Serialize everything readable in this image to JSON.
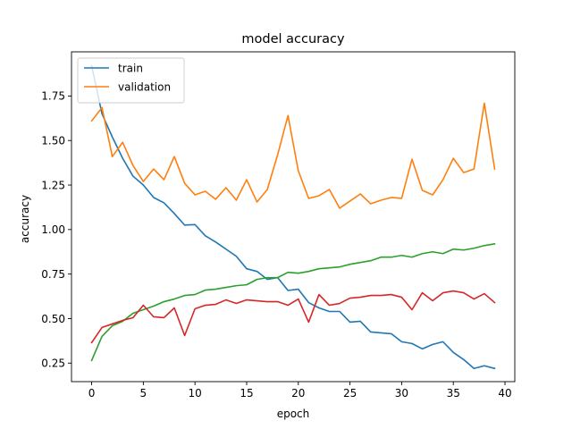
{
  "chart_data": {
    "type": "line",
    "title": "model accuracy",
    "xlabel": "epoch",
    "ylabel": "accuracy",
    "xlim": [
      -1.95,
      40.95
    ],
    "ylim": [
      0.146,
      1.998
    ],
    "xticks": [
      0,
      5,
      10,
      15,
      20,
      25,
      30,
      35,
      40
    ],
    "xtick_labels": [
      "0",
      "5",
      "10",
      "15",
      "20",
      "25",
      "30",
      "35",
      "40"
    ],
    "yticks": [
      0.25,
      0.5,
      0.75,
      1.0,
      1.25,
      1.5,
      1.75
    ],
    "ytick_labels": [
      "0.25",
      "0.50",
      "0.75",
      "1.00",
      "1.25",
      "1.50",
      "1.75"
    ],
    "grid": false,
    "legend_position": "top-left",
    "x": [
      0,
      1,
      2,
      3,
      4,
      5,
      6,
      7,
      8,
      9,
      10,
      11,
      12,
      13,
      14,
      15,
      16,
      17,
      18,
      19,
      20,
      21,
      22,
      23,
      24,
      25,
      26,
      27,
      28,
      29,
      30,
      31,
      32,
      33,
      34,
      35,
      36,
      37,
      38,
      39
    ],
    "series": [
      {
        "name": "train",
        "legend": true,
        "color": "#1f77b4",
        "values": [
          1.92,
          1.65,
          1.52,
          1.4,
          1.3,
          1.25,
          1.18,
          1.15,
          1.09,
          1.025,
          1.028,
          0.965,
          0.93,
          0.89,
          0.85,
          0.78,
          0.765,
          0.72,
          0.73,
          0.658,
          0.665,
          0.59,
          0.56,
          0.54,
          0.54,
          0.48,
          0.485,
          0.425,
          0.42,
          0.415,
          0.37,
          0.36,
          0.33,
          0.355,
          0.37,
          0.31,
          0.27,
          0.22,
          0.235,
          0.22
        ]
      },
      {
        "name": "validation",
        "legend": true,
        "color": "#ff7f0e",
        "values": [
          1.61,
          1.685,
          1.41,
          1.49,
          1.36,
          1.27,
          1.34,
          1.28,
          1.41,
          1.26,
          1.195,
          1.215,
          1.17,
          1.235,
          1.165,
          1.28,
          1.155,
          1.225,
          1.42,
          1.64,
          1.33,
          1.175,
          1.19,
          1.225,
          1.12,
          1.16,
          1.2,
          1.145,
          1.165,
          1.18,
          1.175,
          1.395,
          1.22,
          1.195,
          1.28,
          1.4,
          1.32,
          1.34,
          1.71,
          1.34
        ]
      },
      {
        "legend": false,
        "color": "#2ca02c",
        "values": [
          0.265,
          0.4,
          0.46,
          0.485,
          0.53,
          0.55,
          0.57,
          0.595,
          0.61,
          0.63,
          0.635,
          0.66,
          0.665,
          0.675,
          0.685,
          0.69,
          0.72,
          0.73,
          0.73,
          0.76,
          0.755,
          0.765,
          0.78,
          0.785,
          0.79,
          0.805,
          0.815,
          0.825,
          0.845,
          0.845,
          0.855,
          0.845,
          0.865,
          0.875,
          0.865,
          0.89,
          0.885,
          0.895,
          0.91,
          0.92
        ]
      },
      {
        "legend": false,
        "color": "#d62728",
        "values": [
          0.365,
          0.45,
          0.47,
          0.49,
          0.505,
          0.575,
          0.51,
          0.505,
          0.56,
          0.405,
          0.555,
          0.575,
          0.58,
          0.605,
          0.585,
          0.605,
          0.6,
          0.595,
          0.595,
          0.575,
          0.61,
          0.48,
          0.635,
          0.575,
          0.585,
          0.615,
          0.62,
          0.63,
          0.63,
          0.635,
          0.62,
          0.55,
          0.645,
          0.6,
          0.645,
          0.655,
          0.645,
          0.61,
          0.64,
          0.59
        ]
      }
    ]
  }
}
